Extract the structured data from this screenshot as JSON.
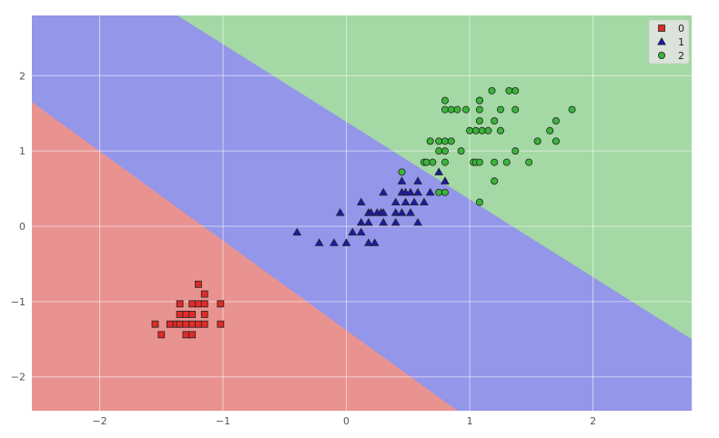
{
  "chart_data": {
    "type": "scatter",
    "title": "",
    "xlabel": "",
    "ylabel": "",
    "xlim": [
      -2.55,
      2.8
    ],
    "ylim": [
      -2.45,
      2.8
    ],
    "xticks": [
      -2,
      -1,
      0,
      1,
      2
    ],
    "yticks": [
      -2,
      -1,
      0,
      1,
      2
    ],
    "xtick_labels": [
      "−2",
      "−1",
      "0",
      "1",
      "2"
    ],
    "ytick_labels": [
      "−2",
      "−1",
      "0",
      "1",
      "2"
    ],
    "grid": true,
    "legend_position": "top-right",
    "decision_regions": [
      {
        "class": "0",
        "color": "#e99391"
      },
      {
        "class": "1",
        "color": "#9496e9"
      },
      {
        "class": "2",
        "color": "#a4d8a4"
      }
    ],
    "boundaries": [
      {
        "between": [
          "0",
          "1"
        ],
        "points": [
          [
            -2.55,
            1.65
          ],
          [
            0.9,
            -2.45
          ]
        ]
      },
      {
        "between": [
          "1",
          "2"
        ],
        "points": [
          [
            -1.37,
            2.8
          ],
          [
            2.8,
            -1.5
          ]
        ]
      }
    ],
    "series": [
      {
        "name": "0",
        "marker": "square",
        "color": "#e02b27",
        "points": [
          [
            -1.2,
            -0.77
          ],
          [
            -1.15,
            -0.9
          ],
          [
            -1.35,
            -1.03
          ],
          [
            -1.25,
            -1.03
          ],
          [
            -1.2,
            -1.03
          ],
          [
            -1.15,
            -1.03
          ],
          [
            -1.02,
            -1.03
          ],
          [
            -1.35,
            -1.17
          ],
          [
            -1.3,
            -1.17
          ],
          [
            -1.25,
            -1.17
          ],
          [
            -1.15,
            -1.17
          ],
          [
            -1.55,
            -1.3
          ],
          [
            -1.43,
            -1.3
          ],
          [
            -1.38,
            -1.3
          ],
          [
            -1.35,
            -1.3
          ],
          [
            -1.3,
            -1.3
          ],
          [
            -1.25,
            -1.3
          ],
          [
            -1.2,
            -1.3
          ],
          [
            -1.15,
            -1.3
          ],
          [
            -1.02,
            -1.3
          ],
          [
            -1.5,
            -1.44
          ],
          [
            -1.3,
            -1.44
          ],
          [
            -1.25,
            -1.44
          ]
        ]
      },
      {
        "name": "1",
        "marker": "triangle",
        "color": "#1c1aa8",
        "points": [
          [
            0.45,
            0.6
          ],
          [
            0.58,
            0.6
          ],
          [
            0.75,
            0.72
          ],
          [
            0.8,
            0.6
          ],
          [
            0.3,
            0.45
          ],
          [
            0.45,
            0.45
          ],
          [
            0.48,
            0.45
          ],
          [
            0.52,
            0.45
          ],
          [
            0.58,
            0.45
          ],
          [
            0.68,
            0.45
          ],
          [
            0.12,
            0.32
          ],
          [
            0.4,
            0.32
          ],
          [
            0.48,
            0.32
          ],
          [
            0.55,
            0.32
          ],
          [
            0.63,
            0.32
          ],
          [
            -0.05,
            0.18
          ],
          [
            0.18,
            0.18
          ],
          [
            0.2,
            0.18
          ],
          [
            0.25,
            0.18
          ],
          [
            0.28,
            0.18
          ],
          [
            0.3,
            0.18
          ],
          [
            0.4,
            0.18
          ],
          [
            0.45,
            0.18
          ],
          [
            0.52,
            0.18
          ],
          [
            0.12,
            0.05
          ],
          [
            0.18,
            0.05
          ],
          [
            0.3,
            0.05
          ],
          [
            0.4,
            0.05
          ],
          [
            0.58,
            0.05
          ],
          [
            -0.4,
            -0.08
          ],
          [
            0.05,
            -0.08
          ],
          [
            0.12,
            -0.08
          ],
          [
            -0.22,
            -0.22
          ],
          [
            -0.1,
            -0.22
          ],
          [
            0.0,
            -0.22
          ],
          [
            0.18,
            -0.22
          ],
          [
            0.23,
            -0.22
          ]
        ]
      },
      {
        "name": "2",
        "marker": "circle",
        "color": "#3bb43b",
        "points": [
          [
            1.18,
            1.8
          ],
          [
            1.32,
            1.8
          ],
          [
            1.37,
            1.8
          ],
          [
            0.8,
            1.67
          ],
          [
            1.08,
            1.67
          ],
          [
            1.08,
            1.67
          ],
          [
            0.8,
            1.55
          ],
          [
            0.85,
            1.55
          ],
          [
            0.9,
            1.55
          ],
          [
            0.97,
            1.55
          ],
          [
            1.08,
            1.55
          ],
          [
            1.25,
            1.55
          ],
          [
            1.37,
            1.55
          ],
          [
            1.83,
            1.55
          ],
          [
            1.08,
            1.4
          ],
          [
            1.2,
            1.4
          ],
          [
            1.7,
            1.4
          ],
          [
            1.0,
            1.27
          ],
          [
            1.05,
            1.27
          ],
          [
            1.1,
            1.27
          ],
          [
            1.15,
            1.27
          ],
          [
            1.25,
            1.27
          ],
          [
            1.65,
            1.27
          ],
          [
            0.68,
            1.13
          ],
          [
            0.75,
            1.13
          ],
          [
            0.8,
            1.13
          ],
          [
            0.85,
            1.13
          ],
          [
            1.55,
            1.13
          ],
          [
            1.7,
            1.13
          ],
          [
            0.75,
            1.0
          ],
          [
            0.8,
            1.0
          ],
          [
            0.93,
            1.0
          ],
          [
            1.37,
            1.0
          ],
          [
            0.63,
            0.85
          ],
          [
            0.65,
            0.85
          ],
          [
            0.7,
            0.85
          ],
          [
            0.8,
            0.85
          ],
          [
            1.03,
            0.85
          ],
          [
            1.05,
            0.85
          ],
          [
            1.08,
            0.85
          ],
          [
            1.2,
            0.85
          ],
          [
            1.3,
            0.85
          ],
          [
            1.48,
            0.85
          ],
          [
            0.45,
            0.72
          ],
          [
            1.2,
            0.6
          ],
          [
            0.75,
            0.45
          ],
          [
            0.8,
            0.45
          ],
          [
            1.08,
            0.32
          ]
        ]
      }
    ]
  }
}
